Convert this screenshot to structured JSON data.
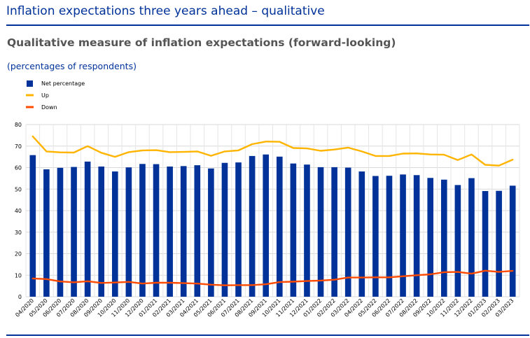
{
  "page": {
    "title": "Inflation expectations three years ahead – qualitative"
  },
  "chart_data": {
    "type": "bar",
    "title": "Qualitative measure of inflation expectations (forward-looking)",
    "subtitle": "(percentages of respondents)",
    "xlabel": "",
    "ylabel": "",
    "ylim": [
      0,
      80
    ],
    "yticks": [
      0,
      10,
      20,
      30,
      40,
      50,
      60,
      70,
      80
    ],
    "grid": true,
    "legend_position": "top-left",
    "categories": [
      "04/2020",
      "05/2020",
      "06/2020",
      "07/2020",
      "08/2020",
      "09/2020",
      "10/2020",
      "11/2020",
      "12/2020",
      "01/2021",
      "02/2021",
      "03/2021",
      "04/2021",
      "05/2021",
      "06/2021",
      "07/2021",
      "08/2021",
      "09/2021",
      "10/2021",
      "11/2021",
      "12/2021",
      "01/2022",
      "02/2022",
      "03/2022",
      "04/2022",
      "05/2022",
      "06/2022",
      "07/2022",
      "08/2022",
      "09/2022",
      "10/2022",
      "11/2022",
      "12/2022",
      "01/2023",
      "02/2023",
      "03/2023"
    ],
    "series": [
      {
        "name": "Net percentage",
        "type": "bar",
        "color": "#003299",
        "values": [
          65.8,
          59.2,
          59.9,
          60.3,
          62.8,
          60.5,
          58.2,
          60.1,
          61.7,
          61.6,
          60.5,
          60.7,
          61.1,
          59.6,
          62.2,
          62.4,
          65.4,
          66.1,
          65.1,
          61.9,
          61.4,
          60.2,
          60.2,
          60.0,
          58.2,
          56.1,
          56.2,
          56.8,
          56.5,
          55.2,
          54.4,
          51.9,
          55.1,
          49.1,
          49.2,
          51.6
        ]
      },
      {
        "name": "Up",
        "type": "line",
        "color": "#FFB400",
        "values": [
          74.5,
          67.5,
          67.1,
          67.0,
          70.0,
          66.9,
          65.0,
          67.2,
          68.0,
          68.1,
          67.2,
          67.3,
          67.5,
          65.5,
          67.5,
          68.0,
          70.9,
          72.1,
          72.0,
          69.1,
          68.9,
          67.8,
          68.4,
          69.3,
          67.5,
          65.4,
          65.4,
          66.5,
          66.6,
          66.1,
          66.0,
          63.5,
          66.1,
          61.3,
          60.9,
          63.7
        ]
      },
      {
        "name": "Down",
        "type": "line",
        "color": "#FF4B00",
        "values": [
          8.5,
          8.2,
          7.1,
          6.7,
          7.2,
          6.4,
          6.6,
          6.9,
          6.1,
          6.5,
          6.5,
          6.3,
          6.1,
          5.6,
          5.3,
          5.4,
          5.4,
          5.8,
          6.8,
          7.0,
          7.3,
          7.5,
          7.9,
          8.9,
          8.9,
          9.0,
          9.0,
          9.5,
          10.0,
          10.4,
          11.4,
          11.5,
          10.7,
          12.1,
          11.5,
          12.0
        ]
      }
    ]
  }
}
